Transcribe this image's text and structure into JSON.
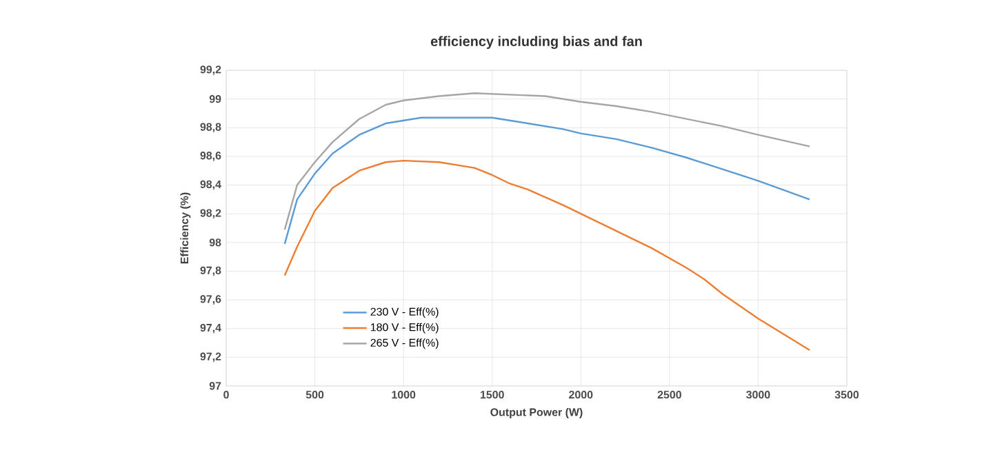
{
  "chart_data": {
    "type": "line",
    "title": "efficiency including bias and fan",
    "xlabel": "Output Power (W)",
    "ylabel": "Efficiency (%)",
    "xlim": [
      0,
      3500
    ],
    "xticks": [
      0,
      500,
      1000,
      1500,
      2000,
      2500,
      3000,
      3500
    ],
    "ylim": [
      97,
      99.2
    ],
    "yticks": [
      97,
      {
        "value": 97.2,
        "label": "97,2"
      },
      {
        "value": 97.4,
        "label": "97,4"
      },
      {
        "value": 97.6,
        "label": "97,6"
      },
      {
        "value": 97.8,
        "label": "97,8"
      },
      98,
      {
        "value": 98.2,
        "label": "98,2"
      },
      {
        "value": 98.4,
        "label": "98,4"
      },
      {
        "value": 98.6,
        "label": "98,6"
      },
      {
        "value": 98.8,
        "label": "98,8"
      },
      99,
      {
        "value": 99.2,
        "label": "99,2"
      }
    ],
    "grid": true,
    "legend": "bottom left",
    "marker": "none",
    "line_style": "solid",
    "series": [
      {
        "name": "230 V - Eff(%)",
        "color": "#5b9bd5",
        "x": [
          330,
          400,
          500,
          600,
          750,
          900,
          1100,
          1200,
          1500,
          1700,
          1900,
          2000,
          2200,
          2400,
          2600,
          2800,
          3000,
          3290
        ],
        "values": [
          97.99,
          98.3,
          98.48,
          98.62,
          98.75,
          98.83,
          98.87,
          98.87,
          98.87,
          98.83,
          98.79,
          98.76,
          98.72,
          98.66,
          98.59,
          98.51,
          98.43,
          98.3
        ]
      },
      {
        "name": "180 V - Eff(%)",
        "color": "#ed7d31",
        "x": [
          330,
          400,
          500,
          600,
          750,
          900,
          1000,
          1200,
          1400,
          1500,
          1600,
          1700,
          1900,
          2000,
          2200,
          2400,
          2600,
          2700,
          2800,
          3000,
          3290
        ],
        "values": [
          97.77,
          97.97,
          98.22,
          98.38,
          98.5,
          98.56,
          98.57,
          98.56,
          98.52,
          98.47,
          98.41,
          98.37,
          98.26,
          98.2,
          98.08,
          97.96,
          97.82,
          97.74,
          97.64,
          97.47,
          97.25
        ]
      },
      {
        "name": "265 V - Eff(%)",
        "color": "#a5a5a5",
        "x": [
          330,
          400,
          500,
          600,
          750,
          900,
          1000,
          1200,
          1400,
          1600,
          1800,
          2000,
          2200,
          2400,
          2600,
          2800,
          3000,
          3290
        ],
        "values": [
          98.09,
          98.4,
          98.56,
          98.7,
          98.86,
          98.96,
          98.99,
          99.02,
          99.04,
          99.03,
          99.02,
          98.98,
          98.95,
          98.91,
          98.86,
          98.81,
          98.75,
          98.67
        ]
      }
    ]
  }
}
